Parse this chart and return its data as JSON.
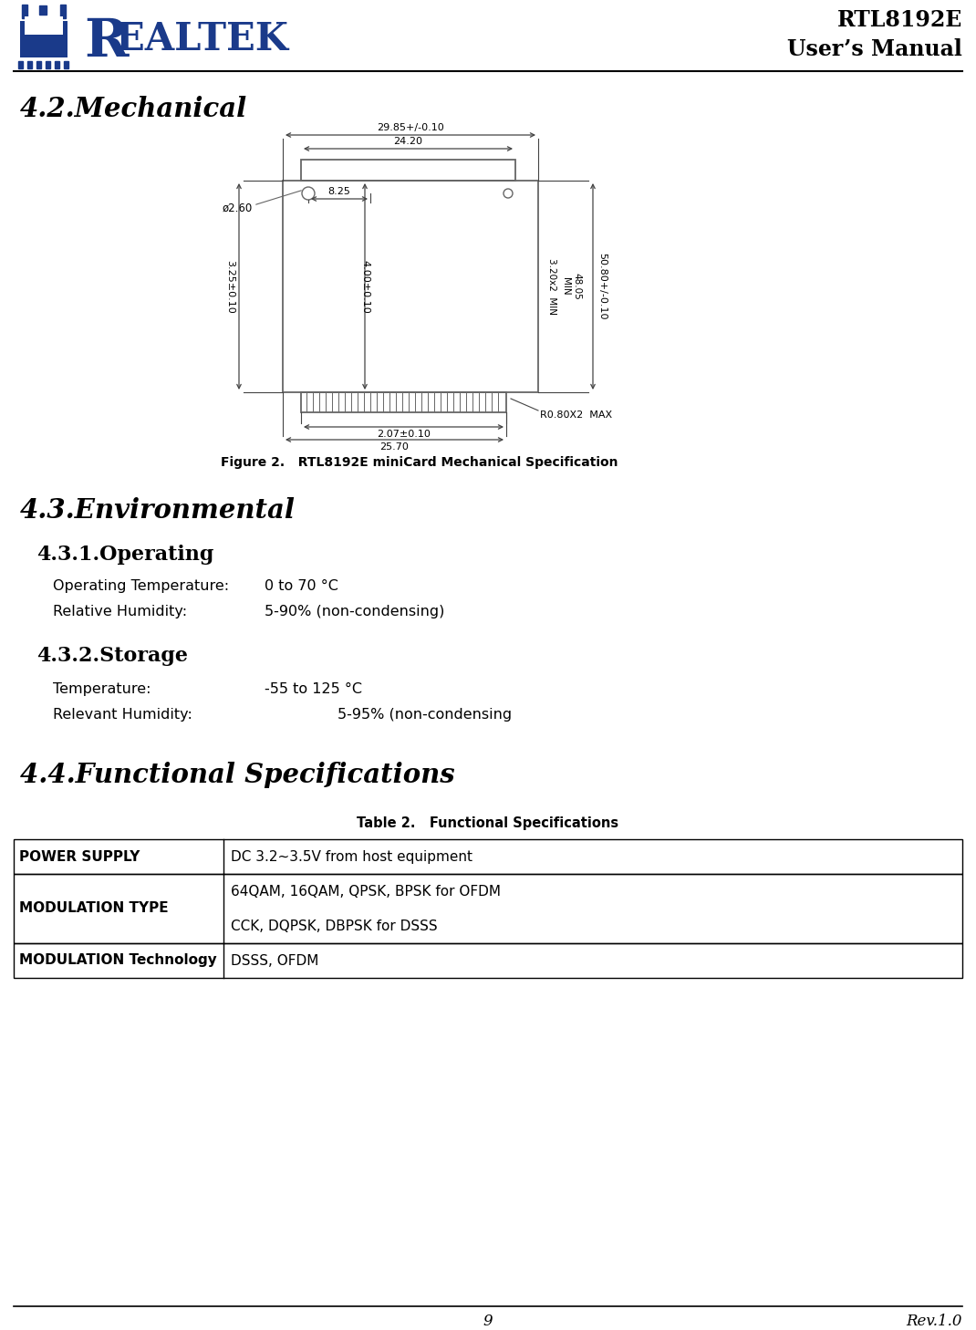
{
  "page_title_right_line1": "RTL8192E",
  "page_title_right_line2": "User’s Manual",
  "section_42": "4.2.Mechanical",
  "figure_caption": "Figure 2.   RTL8192E miniCard Mechanical Specification",
  "section_43": "4.3.Environmental",
  "section_431": "4.3.1.Operating",
  "op_temp_label": "Operating Temperature:",
  "op_temp_value": "0 to 70 °C",
  "op_humid_label": "Relative Humidity:",
  "op_humid_value": "5-90% (non-condensing)",
  "section_432": "4.3.2.Storage",
  "stor_temp_label": "Temperature:",
  "stor_temp_value": "-55 to 125 °C",
  "stor_humid_label": "Relevant Humidity:",
  "stor_humid_value": "5-95% (non-condensing",
  "section_44": "4.4.Functional Specifications",
  "table_caption": "Table 2.   Functional Specifications",
  "table_rows": [
    [
      "POWER SUPPLY",
      "DC 3.2~3.5V from host equipment",
      1
    ],
    [
      "MODULATION TYPE",
      "CCK, DQPSK, DBPSK for DSSS\n64QAM, 16QAM, QPSK, BPSK for OFDM",
      2
    ],
    [
      "MODULATION Technology",
      "DSSS, OFDM",
      1
    ]
  ],
  "footer_page": "9",
  "footer_rev": "Rev.1.0",
  "header_line_color": "#000000",
  "text_color": "#000000",
  "blue_color": "#1a3a8a",
  "bg_color": "#ffffff",
  "dim_color": "#444444",
  "draw_color": "#666666"
}
